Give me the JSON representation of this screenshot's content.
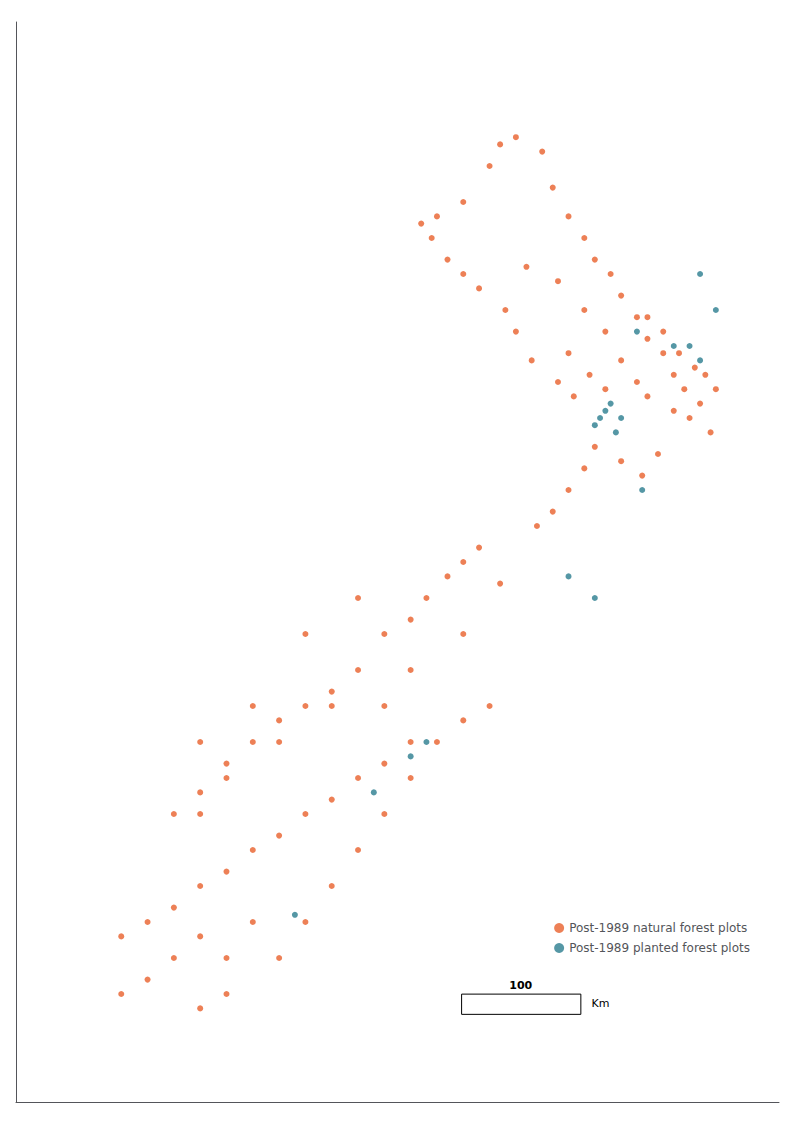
{
  "chart_data": {
    "type": "scatter",
    "xlim": [
      165.0,
      179.5
    ],
    "ylim": [
      -48.5,
      -33.5
    ],
    "tick_labels": false,
    "grid": false,
    "legend": "lower right",
    "marker": "circle",
    "annotations": [
      {
        "text": "100"
      },
      {
        "text": "Km"
      }
    ],
    "series": [
      {
        "name": "Post-1989 natural forest plots",
        "color": "#E8602C",
        "values": [
          [
            174.7,
            -36.9
          ],
          [
            175.3,
            -37.1
          ],
          [
            175.8,
            -37.5
          ],
          [
            176.2,
            -37.8
          ],
          [
            175.5,
            -38.1
          ],
          [
            176.5,
            -38.2
          ],
          [
            176.8,
            -38.5
          ],
          [
            177.0,
            -38.7
          ],
          [
            177.5,
            -38.9
          ],
          [
            177.8,
            -39.0
          ],
          [
            178.2,
            -39.2
          ],
          [
            178.3,
            -38.6
          ],
          [
            177.9,
            -38.3
          ],
          [
            177.2,
            -39.5
          ],
          [
            176.9,
            -39.8
          ],
          [
            176.5,
            -39.6
          ],
          [
            176.0,
            -39.4
          ],
          [
            175.8,
            -39.7
          ],
          [
            175.5,
            -40.0
          ],
          [
            175.2,
            -40.3
          ],
          [
            174.9,
            -40.5
          ],
          [
            175.6,
            -38.7
          ],
          [
            175.9,
            -38.4
          ],
          [
            176.2,
            -38.6
          ],
          [
            175.3,
            -38.5
          ],
          [
            174.8,
            -38.2
          ],
          [
            174.5,
            -37.8
          ],
          [
            174.3,
            -37.5
          ],
          [
            173.8,
            -37.2
          ],
          [
            173.5,
            -37.0
          ],
          [
            173.2,
            -36.8
          ],
          [
            172.9,
            -36.5
          ],
          [
            172.7,
            -36.3
          ],
          [
            173.0,
            -36.2
          ],
          [
            173.5,
            -36.0
          ],
          [
            174.0,
            -35.5
          ],
          [
            174.2,
            -35.2
          ],
          [
            174.5,
            -35.1
          ],
          [
            175.0,
            -35.3
          ],
          [
            175.2,
            -35.8
          ],
          [
            175.5,
            -36.2
          ],
          [
            175.8,
            -36.5
          ],
          [
            176.0,
            -36.8
          ],
          [
            176.3,
            -37.0
          ],
          [
            176.5,
            -37.3
          ],
          [
            176.8,
            -37.6
          ],
          [
            177.0,
            -37.9
          ],
          [
            177.3,
            -38.1
          ],
          [
            177.5,
            -38.4
          ],
          [
            177.7,
            -38.6
          ],
          [
            178.0,
            -38.8
          ],
          [
            178.1,
            -38.4
          ],
          [
            177.6,
            -38.1
          ],
          [
            177.3,
            -37.8
          ],
          [
            177.0,
            -37.6
          ],
          [
            172.5,
            -43.5
          ],
          [
            172.0,
            -43.8
          ],
          [
            171.5,
            -44.0
          ],
          [
            171.0,
            -44.3
          ],
          [
            170.5,
            -44.5
          ],
          [
            170.0,
            -44.8
          ],
          [
            169.5,
            -45.0
          ],
          [
            169.0,
            -45.3
          ],
          [
            168.5,
            -45.5
          ],
          [
            168.0,
            -45.8
          ],
          [
            167.5,
            -46.0
          ],
          [
            167.0,
            -46.2
          ],
          [
            168.5,
            -44.5
          ],
          [
            169.0,
            -44.0
          ],
          [
            170.0,
            -43.5
          ],
          [
            171.0,
            -43.0
          ],
          [
            172.0,
            -43.0
          ],
          [
            172.5,
            -42.5
          ],
          [
            172.0,
            -42.0
          ],
          [
            171.5,
            -42.5
          ],
          [
            171.0,
            -42.8
          ],
          [
            170.5,
            -43.0
          ],
          [
            170.0,
            -43.2
          ],
          [
            169.5,
            -43.5
          ],
          [
            169.0,
            -43.8
          ],
          [
            168.5,
            -44.2
          ],
          [
            168.0,
            -44.5
          ],
          [
            169.5,
            -46.0
          ],
          [
            169.0,
            -46.5
          ],
          [
            168.5,
            -46.2
          ],
          [
            168.0,
            -46.5
          ],
          [
            167.5,
            -46.8
          ],
          [
            167.0,
            -47.0
          ],
          [
            168.5,
            -47.2
          ],
          [
            169.0,
            -47.0
          ],
          [
            170.0,
            -46.5
          ],
          [
            170.5,
            -46.0
          ],
          [
            171.0,
            -45.5
          ],
          [
            171.5,
            -45.0
          ],
          [
            172.0,
            -44.5
          ],
          [
            172.5,
            -44.0
          ],
          [
            173.0,
            -43.5
          ],
          [
            173.5,
            -43.2
          ],
          [
            174.0,
            -43.0
          ],
          [
            172.8,
            -41.5
          ],
          [
            173.2,
            -41.2
          ],
          [
            173.5,
            -41.0
          ],
          [
            173.8,
            -40.8
          ],
          [
            174.2,
            -41.3
          ],
          [
            173.5,
            -42.0
          ],
          [
            172.5,
            -41.8
          ],
          [
            171.5,
            -41.5
          ],
          [
            170.5,
            -42.0
          ],
          [
            169.5,
            -43.0
          ],
          [
            168.5,
            -43.5
          ]
        ]
      },
      {
        "name": "Post-1989 planted forest plots",
        "color": "#2A7D8E",
        "values": [
          [
            178.0,
            -37.0
          ],
          [
            178.3,
            -37.5
          ],
          [
            176.8,
            -37.8
          ],
          [
            177.5,
            -38.0
          ],
          [
            176.3,
            -38.8
          ],
          [
            176.5,
            -39.0
          ],
          [
            176.4,
            -39.2
          ],
          [
            178.0,
            -38.2
          ],
          [
            177.8,
            -38.0
          ],
          [
            176.9,
            -40.0
          ],
          [
            172.5,
            -43.7
          ],
          [
            172.8,
            -43.5
          ],
          [
            171.8,
            -44.2
          ],
          [
            170.3,
            -45.9
          ],
          [
            175.5,
            -41.2
          ],
          [
            176.0,
            -41.5
          ],
          [
            176.2,
            -38.9
          ],
          [
            176.1,
            -39.0
          ],
          [
            176.0,
            -39.1
          ]
        ]
      }
    ]
  }
}
